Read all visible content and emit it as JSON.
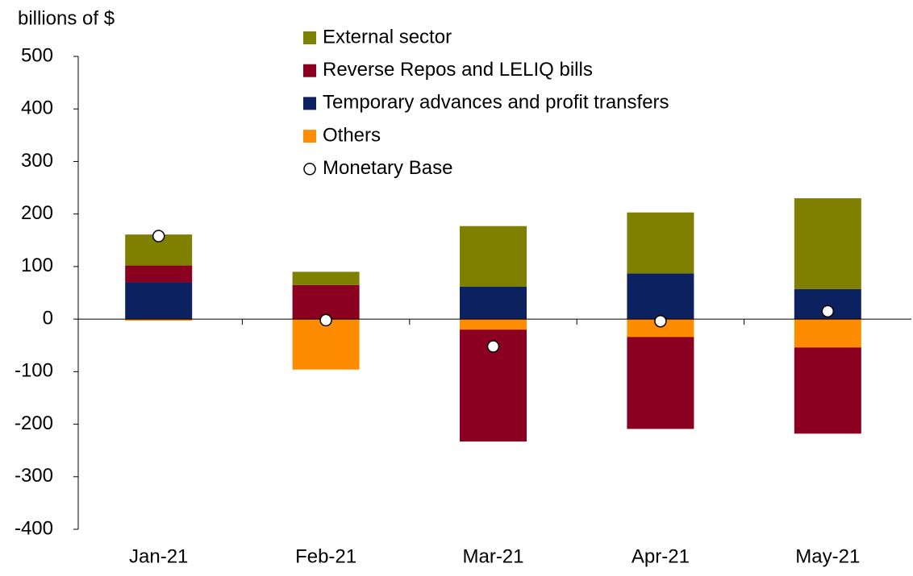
{
  "chart_data": {
    "type": "stacked_bar",
    "y_axis_label": "billions of $",
    "categories": [
      "Jan-21",
      "Feb-21",
      "Mar-21",
      "Apr-21",
      "May-21"
    ],
    "series": [
      {
        "name": "External sector",
        "color": "#7f7f00",
        "values": [
          59,
          25,
          115,
          116,
          173
        ]
      },
      {
        "name": "Reverse Repos and LELIQ bills",
        "color": "#8b0020",
        "values": [
          32,
          65,
          -213,
          -175,
          -164
        ]
      },
      {
        "name": "Temporary advances and profit transfers",
        "color": "#0c2260",
        "values": [
          70,
          0,
          62,
          87,
          57
        ]
      },
      {
        "name": "Others",
        "color": "#ff8c00",
        "values": [
          -3,
          -96,
          -20,
          -34,
          -54
        ]
      }
    ],
    "line_series": {
      "name": "Monetary Base",
      "type": "scatter",
      "color": "#ffffff",
      "values": [
        158,
        -2,
        -52,
        -4,
        15
      ]
    },
    "ylim": [
      -400,
      500
    ],
    "yticks": [
      -400,
      -300,
      -200,
      -100,
      0,
      100,
      200,
      300,
      400,
      500
    ],
    "grid": false,
    "legend": "top"
  }
}
